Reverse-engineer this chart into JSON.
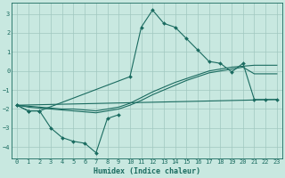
{
  "xlabel": "Humidex (Indice chaleur)",
  "bg_color": "#c8e8e0",
  "grid_color": "#a0c8c0",
  "line_color": "#1a6b60",
  "xlim": [
    -0.5,
    23.5
  ],
  "ylim": [
    -4.6,
    3.6
  ],
  "yticks": [
    -4,
    -3,
    -2,
    -1,
    0,
    1,
    2,
    3
  ],
  "xticks": [
    0,
    1,
    2,
    3,
    4,
    5,
    6,
    7,
    8,
    9,
    10,
    11,
    12,
    13,
    14,
    15,
    16,
    17,
    18,
    19,
    20,
    21,
    22,
    23
  ],
  "series": [
    {
      "x": [
        0,
        1,
        2,
        10,
        11,
        12,
        13,
        14,
        15,
        16,
        17,
        18,
        19,
        20,
        21,
        22,
        23
      ],
      "y": [
        -1.8,
        -2.1,
        -2.1,
        -0.3,
        2.3,
        3.2,
        2.5,
        2.3,
        1.7,
        1.1,
        0.5,
        0.4,
        -0.05,
        0.4,
        -1.5,
        -1.5,
        -1.5
      ],
      "marker": true
    },
    {
      "x": [
        0,
        1,
        2,
        3,
        4,
        5,
        6,
        7,
        8,
        9
      ],
      "y": [
        -1.8,
        -2.1,
        -2.1,
        -3.0,
        -3.5,
        -3.7,
        -3.8,
        -4.3,
        -2.5,
        -2.3
      ],
      "marker": true
    },
    {
      "x": [
        0,
        1,
        2,
        3,
        4,
        5,
        6,
        7,
        8,
        9,
        10,
        11,
        12,
        13,
        14,
        15,
        16,
        17,
        18,
        19,
        20,
        21,
        22,
        23
      ],
      "y": [
        -1.8,
        -1.85,
        -1.9,
        -1.95,
        -2.0,
        -2.0,
        -2.05,
        -2.1,
        -2.0,
        -1.9,
        -1.7,
        -1.4,
        -1.1,
        -0.85,
        -0.6,
        -0.4,
        -0.2,
        0.0,
        0.1,
        0.2,
        0.25,
        0.3,
        0.3,
        0.3
      ],
      "marker": false
    },
    {
      "x": [
        0,
        1,
        2,
        3,
        4,
        5,
        6,
        7,
        8,
        9,
        10,
        11,
        12,
        13,
        14,
        15,
        16,
        17,
        18,
        19,
        20,
        21,
        22,
        23
      ],
      "y": [
        -1.8,
        -1.9,
        -1.95,
        -2.0,
        -2.05,
        -2.1,
        -2.15,
        -2.2,
        -2.1,
        -2.0,
        -1.8,
        -1.55,
        -1.25,
        -1.0,
        -0.75,
        -0.5,
        -0.3,
        -0.1,
        0.0,
        0.1,
        0.2,
        -0.15,
        -0.15,
        -0.15
      ],
      "marker": false
    },
    {
      "x": [
        0,
        23
      ],
      "y": [
        -1.8,
        -1.5
      ],
      "marker": false
    }
  ]
}
